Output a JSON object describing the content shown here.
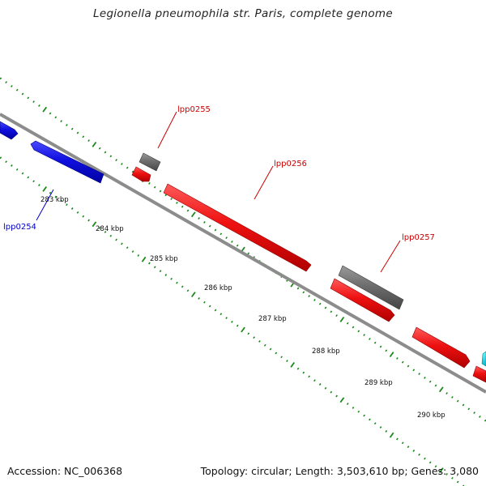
{
  "title": "Legionella pneumophila str. Paris, complete genome",
  "footer": {
    "accession": "Accession: NC_006368",
    "topology": "Topology: circular; Length: 3,503,610 bp; Genes: 3,080"
  },
  "colors": {
    "forward_cds": "#1010e0",
    "reverse_cds": "#ee1111",
    "gene": "#707070",
    "other": "#00d8e0",
    "tick": "#1a8a1a",
    "backbone": "#8c8c8c",
    "label_forward": "#0000cc",
    "label_reverse": "#cc0000"
  },
  "scale_labels": [
    "283 kbp",
    "284 kbp",
    "285 kbp",
    "286 kbp",
    "287 kbp",
    "288 kbp",
    "289 kbp",
    "290 kbp"
  ],
  "feature_labels": [
    {
      "text": "lpp0254",
      "strand": "forward"
    },
    {
      "text": "lpp0255",
      "strand": "reverse"
    },
    {
      "text": "lpp0256",
      "strand": "reverse"
    },
    {
      "text": "lpp0257",
      "strand": "reverse"
    }
  ]
}
